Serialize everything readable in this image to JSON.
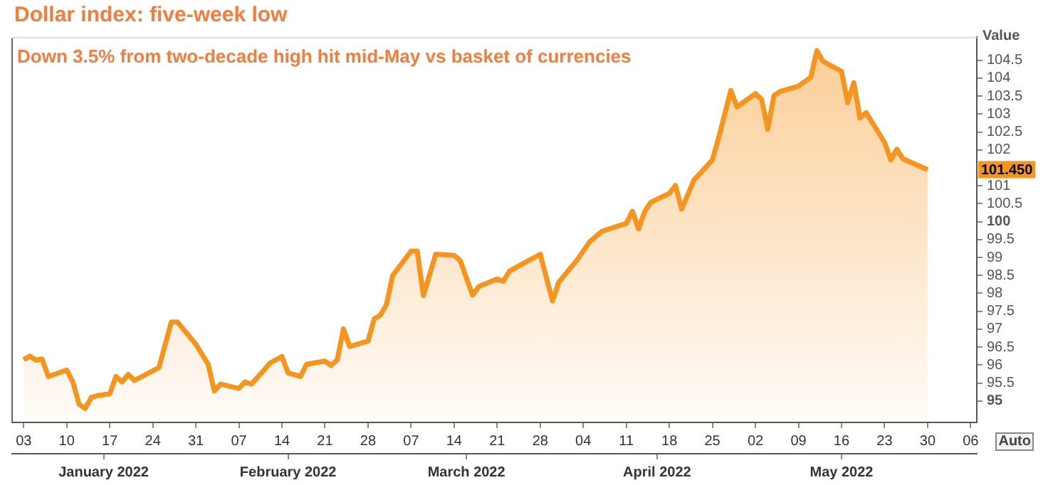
{
  "chart_data": {
    "type": "area",
    "title": "Dollar index: five-week low",
    "subtitle": "Down 3.5% from two-decade high hit mid-May vs basket of currencies",
    "ylabel": "Value",
    "x": [
      "2022-01-03",
      "2022-01-04",
      "2022-01-05",
      "2022-01-06",
      "2022-01-07",
      "2022-01-10",
      "2022-01-11",
      "2022-01-12",
      "2022-01-13",
      "2022-01-14",
      "2022-01-15",
      "2022-01-17",
      "2022-01-18",
      "2022-01-19",
      "2022-01-20",
      "2022-01-21",
      "2022-01-25",
      "2022-01-27",
      "2022-01-28",
      "2022-01-31",
      "2022-02-02",
      "2022-02-03",
      "2022-02-04",
      "2022-02-07",
      "2022-02-08",
      "2022-02-09",
      "2022-02-11",
      "2022-02-12",
      "2022-02-14",
      "2022-02-15",
      "2022-02-17",
      "2022-02-18",
      "2022-02-21",
      "2022-02-22",
      "2022-02-23",
      "2022-02-24",
      "2022-02-25",
      "2022-02-28",
      "2022-03-01",
      "2022-03-02",
      "2022-03-03",
      "2022-03-04",
      "2022-03-07",
      "2022-03-08",
      "2022-03-09",
      "2022-03-11",
      "2022-03-14",
      "2022-03-15",
      "2022-03-17",
      "2022-03-18",
      "2022-03-21",
      "2022-03-22",
      "2022-03-23",
      "2022-03-25",
      "2022-03-28",
      "2022-03-30",
      "2022-03-31",
      "2022-04-03",
      "2022-04-05",
      "2022-04-07",
      "2022-04-11",
      "2022-04-12",
      "2022-04-13",
      "2022-04-14",
      "2022-04-15",
      "2022-04-18",
      "2022-04-19",
      "2022-04-20",
      "2022-04-22",
      "2022-04-25",
      "2022-04-26",
      "2022-04-28",
      "2022-04-29",
      "2022-05-02",
      "2022-05-03",
      "2022-05-04",
      "2022-05-05",
      "2022-05-06",
      "2022-05-09",
      "2022-05-11",
      "2022-05-12",
      "2022-05-13",
      "2022-05-16",
      "2022-05-17",
      "2022-05-18",
      "2022-05-19",
      "2022-05-20",
      "2022-05-23",
      "2022-05-24",
      "2022-05-25",
      "2022-05-26",
      "2022-05-30"
    ],
    "series": [
      {
        "color": "#f7941d",
        "values": [
          96.15,
          96.25,
          96.14,
          96.17,
          95.68,
          95.86,
          95.53,
          94.91,
          94.79,
          95.1,
          95.15,
          95.2,
          95.68,
          95.53,
          95.74,
          95.57,
          95.93,
          97.2,
          97.2,
          96.58,
          96.02,
          95.28,
          95.47,
          95.35,
          95.53,
          95.47,
          95.84,
          96.05,
          96.24,
          95.78,
          95.68,
          96.02,
          96.11,
          95.99,
          96.15,
          97.01,
          96.52,
          96.67,
          97.29,
          97.39,
          97.69,
          98.5,
          99.18,
          99.18,
          97.94,
          99.09,
          99.06,
          98.91,
          97.95,
          98.19,
          98.4,
          98.34,
          98.62,
          98.81,
          99.09,
          97.79,
          98.31,
          98.93,
          99.43,
          99.73,
          99.95,
          100.29,
          99.8,
          100.29,
          100.54,
          100.79,
          101.01,
          100.35,
          101.16,
          101.72,
          102.33,
          103.66,
          103.2,
          103.57,
          103.41,
          102.58,
          103.51,
          103.63,
          103.78,
          104.03,
          104.77,
          104.47,
          104.19,
          103.32,
          103.88,
          102.89,
          103.04,
          102.21,
          101.72,
          102.02,
          101.75,
          101.45
        ]
      }
    ],
    "xlim": [
      "2022-01-01",
      "2022-06-07"
    ],
    "xticks": [
      {
        "value": "2022-01-03",
        "label": "03"
      },
      {
        "value": "2022-01-10",
        "label": "10"
      },
      {
        "value": "2022-01-17",
        "label": "17"
      },
      {
        "value": "2022-01-24",
        "label": "24"
      },
      {
        "value": "2022-01-31",
        "label": "31"
      },
      {
        "value": "2022-02-07",
        "label": "07"
      },
      {
        "value": "2022-02-14",
        "label": "14"
      },
      {
        "value": "2022-02-21",
        "label": "21"
      },
      {
        "value": "2022-02-28",
        "label": "28"
      },
      {
        "value": "2022-03-07",
        "label": "07"
      },
      {
        "value": "2022-03-14",
        "label": "14"
      },
      {
        "value": "2022-03-21",
        "label": "21"
      },
      {
        "value": "2022-03-28",
        "label": "28"
      },
      {
        "value": "2022-04-04",
        "label": "04"
      },
      {
        "value": "2022-04-11",
        "label": "11"
      },
      {
        "value": "2022-04-18",
        "label": "18"
      },
      {
        "value": "2022-04-25",
        "label": "25"
      },
      {
        "value": "2022-05-02",
        "label": "02"
      },
      {
        "value": "2022-05-09",
        "label": "09"
      },
      {
        "value": "2022-05-16",
        "label": "16"
      },
      {
        "value": "2022-05-23",
        "label": "23"
      },
      {
        "value": "2022-05-30",
        "label": "30"
      },
      {
        "value": "2022-06-06",
        "label": "06"
      }
    ],
    "x2lim": [
      "2022-01-01",
      "2022-06-07"
    ],
    "x2ticks": [
      {
        "value": "2022-01-16",
        "label": "January 2022"
      },
      {
        "value": "2022-02-15",
        "label": "February 2022"
      },
      {
        "value": "2022-03-16",
        "label": "March 2022"
      },
      {
        "value": "2022-04-16",
        "label": "April 2022"
      },
      {
        "value": "2022-05-16",
        "label": "May 2022"
      }
    ],
    "ylim": [
      94.4,
      105.15
    ],
    "yticks": [
      95,
      95.5,
      96,
      96.5,
      97,
      97.5,
      98,
      98.5,
      99,
      99.5,
      100,
      100.5,
      101,
      102,
      102.5,
      103,
      103.5,
      104,
      104.5
    ],
    "annotations": [
      "101.450",
      "Auto"
    ],
    "legend": false,
    "grid": false
  }
}
